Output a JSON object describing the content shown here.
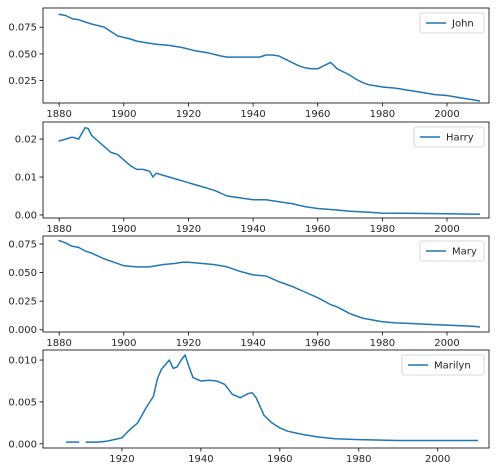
{
  "chart_data": [
    {
      "type": "line",
      "series": [
        {
          "name": "John",
          "color": "#1f77b4",
          "x": [
            1880,
            1882,
            1884,
            1886,
            1888,
            1890,
            1894,
            1898,
            1902,
            1904,
            1906,
            1910,
            1914,
            1918,
            1922,
            1926,
            1930,
            1932,
            1936,
            1940,
            1942,
            1944,
            1946,
            1948,
            1950,
            1952,
            1954,
            1956,
            1958,
            1960,
            1962,
            1964,
            1966,
            1968,
            1970,
            1972,
            1974,
            1976,
            1978,
            1980,
            1984,
            1988,
            1992,
            1996,
            2000,
            2004,
            2008,
            2010
          ],
          "y": [
            0.087,
            0.086,
            0.083,
            0.082,
            0.08,
            0.078,
            0.075,
            0.067,
            0.064,
            0.062,
            0.061,
            0.059,
            0.058,
            0.056,
            0.053,
            0.051,
            0.048,
            0.047,
            0.047,
            0.047,
            0.047,
            0.049,
            0.049,
            0.048,
            0.045,
            0.042,
            0.039,
            0.037,
            0.036,
            0.036,
            0.039,
            0.042,
            0.036,
            0.033,
            0.03,
            0.026,
            0.023,
            0.021,
            0.02,
            0.019,
            0.018,
            0.016,
            0.014,
            0.012,
            0.011,
            0.009,
            0.007,
            0.006
          ]
        }
      ],
      "xlim": [
        1875,
        2013
      ],
      "ylim": [
        0.004,
        0.093
      ],
      "xticks": [
        1880,
        1900,
        1920,
        1940,
        1960,
        1980,
        2000
      ],
      "yticks": [
        0.025,
        0.05,
        0.075
      ],
      "ytick_labels": [
        "0.025",
        "0.050",
        "0.075"
      ],
      "grid": false,
      "legend": "upper-right"
    },
    {
      "type": "line",
      "series": [
        {
          "name": "Harry",
          "color": "#1f77b4",
          "x": [
            1880,
            1882,
            1884,
            1886,
            1888,
            1889,
            1890,
            1892,
            1894,
            1896,
            1898,
            1900,
            1902,
            1904,
            1906,
            1908,
            1909,
            1910,
            1912,
            1914,
            1916,
            1918,
            1920,
            1922,
            1924,
            1928,
            1932,
            1936,
            1940,
            1944,
            1948,
            1952,
            1956,
            1960,
            1966,
            1970,
            1976,
            1980,
            1990,
            2000,
            2010
          ],
          "y": [
            0.0195,
            0.02,
            0.0205,
            0.02,
            0.023,
            0.0228,
            0.021,
            0.0195,
            0.018,
            0.0165,
            0.016,
            0.0145,
            0.013,
            0.012,
            0.012,
            0.0115,
            0.01,
            0.011,
            0.0105,
            0.01,
            0.0095,
            0.009,
            0.0085,
            0.008,
            0.0075,
            0.0065,
            0.005,
            0.0045,
            0.004,
            0.004,
            0.0035,
            0.003,
            0.0022,
            0.0017,
            0.0013,
            0.001,
            0.0007,
            0.0005,
            0.0004,
            0.0003,
            0.0002
          ]
        }
      ],
      "xlim": [
        1875,
        2013
      ],
      "ylim": [
        -0.0008,
        0.0245
      ],
      "xticks": [
        1880,
        1900,
        1920,
        1940,
        1960,
        1980,
        2000
      ],
      "yticks": [
        0.0,
        0.01,
        0.02
      ],
      "ytick_labels": [
        "0.00",
        "0.01",
        "0.02"
      ],
      "grid": false,
      "legend": "upper-right"
    },
    {
      "type": "line",
      "series": [
        {
          "name": "Mary",
          "color": "#1f77b4",
          "x": [
            1880,
            1881,
            1882,
            1884,
            1886,
            1888,
            1890,
            1894,
            1898,
            1900,
            1904,
            1908,
            1912,
            1916,
            1918,
            1920,
            1924,
            1928,
            1932,
            1936,
            1940,
            1944,
            1948,
            1950,
            1952,
            1956,
            1960,
            1962,
            1964,
            1966,
            1968,
            1970,
            1972,
            1974,
            1976,
            1978,
            1980,
            1984,
            1988,
            1992,
            1996,
            2000,
            2004,
            2008,
            2010
          ],
          "y": [
            0.078,
            0.077,
            0.076,
            0.073,
            0.072,
            0.069,
            0.067,
            0.062,
            0.058,
            0.056,
            0.055,
            0.055,
            0.057,
            0.058,
            0.059,
            0.059,
            0.058,
            0.057,
            0.055,
            0.051,
            0.048,
            0.047,
            0.042,
            0.04,
            0.038,
            0.033,
            0.028,
            0.025,
            0.022,
            0.02,
            0.017,
            0.014,
            0.012,
            0.01,
            0.009,
            0.008,
            0.007,
            0.006,
            0.0055,
            0.005,
            0.0045,
            0.004,
            0.0035,
            0.003,
            0.0025
          ]
        }
      ],
      "xlim": [
        1875,
        2013
      ],
      "ylim": [
        -0.002,
        0.082
      ],
      "xticks": [
        1880,
        1900,
        1920,
        1940,
        1960,
        1980,
        2000
      ],
      "yticks": [
        0.0,
        0.025,
        0.05,
        0.075
      ],
      "ytick_labels": [
        "0.000",
        "0.025",
        "0.050",
        "0.075"
      ],
      "grid": false,
      "legend": "upper-right"
    },
    {
      "type": "line",
      "series": [
        {
          "name": "Marilyn",
          "color": "#1f77b4",
          "segments": [
            {
              "x": [
                1906,
                1909
              ],
              "y": [
                0.0002,
                0.0002
              ]
            },
            {
              "x": [
                1911,
                1914,
                1916,
                1918,
                1920,
                1922,
                1924,
                1926,
                1928,
                1929,
                1930,
                1932,
                1933,
                1934,
                1935,
                1936,
                1937,
                1938,
                1940,
                1942,
                1944,
                1946,
                1948,
                1950,
                1952,
                1953,
                1954,
                1956,
                1958,
                1960,
                1962,
                1966,
                1970,
                1974,
                1980,
                1990,
                2000,
                2010
              ],
              "y": [
                0.0002,
                0.0002,
                0.0003,
                0.0005,
                0.0007,
                0.0017,
                0.0025,
                0.0042,
                0.0057,
                0.0078,
                0.0089,
                0.01,
                0.009,
                0.0092,
                0.01,
                0.0106,
                0.0092,
                0.0079,
                0.0075,
                0.0076,
                0.0075,
                0.0071,
                0.0059,
                0.0055,
                0.006,
                0.0061,
                0.0055,
                0.0034,
                0.0025,
                0.0019,
                0.0015,
                0.0011,
                0.0008,
                0.0006,
                0.0005,
                0.0004,
                0.0004,
                0.0004
              ]
            }
          ]
        }
      ],
      "xlim": [
        1900,
        2013
      ],
      "ylim": [
        -0.0005,
        0.0112
      ],
      "xticks": [
        1920,
        1940,
        1960,
        1980,
        2000
      ],
      "yticks": [
        0.0,
        0.005,
        0.01
      ],
      "ytick_labels": [
        "0.000",
        "0.005",
        "0.010"
      ],
      "grid": false,
      "legend": "upper-right"
    }
  ]
}
